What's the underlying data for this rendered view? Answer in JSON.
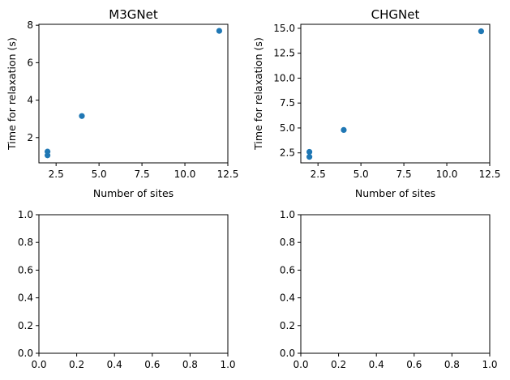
{
  "chart_data": [
    {
      "type": "scatter",
      "title": "M3GNet",
      "xlabel": "Number of sites",
      "ylabel": "Time for relaxation (s)",
      "xlim": [
        1.5,
        12.5
      ],
      "ylim": [
        0.65,
        8.05
      ],
      "xticks": [
        "2.5",
        "5.0",
        "7.5",
        "10.0",
        "12.5"
      ],
      "yticks": [
        "2",
        "4",
        "6",
        "8"
      ],
      "grid": false,
      "color": "#1f77b4",
      "points": [
        {
          "x": 2,
          "y": 1.05
        },
        {
          "x": 2,
          "y": 1.25
        },
        {
          "x": 4,
          "y": 3.15
        },
        {
          "x": 12,
          "y": 7.7
        }
      ]
    },
    {
      "type": "scatter",
      "title": "CHGNet",
      "xlabel": "Number of sites",
      "ylabel": "Time for relaxation (s)",
      "xlim": [
        1.5,
        12.5
      ],
      "ylim": [
        1.5,
        15.4
      ],
      "xticks": [
        "2.5",
        "5.0",
        "7.5",
        "10.0",
        "12.5"
      ],
      "yticks": [
        "2.5",
        "5.0",
        "7.5",
        "10.0",
        "12.5",
        "15.0"
      ],
      "grid": false,
      "color": "#1f77b4",
      "points": [
        {
          "x": 2,
          "y": 2.1
        },
        {
          "x": 2,
          "y": 2.6
        },
        {
          "x": 4,
          "y": 4.8
        },
        {
          "x": 12,
          "y": 14.7
        }
      ]
    },
    {
      "type": "scatter",
      "title": "",
      "xlabel": "",
      "ylabel": "",
      "xlim": [
        0,
        1
      ],
      "ylim": [
        0,
        1
      ],
      "xticks": [
        "0.0",
        "0.2",
        "0.4",
        "0.6",
        "0.8",
        "1.0"
      ],
      "yticks": [
        "0.0",
        "0.2",
        "0.4",
        "0.6",
        "0.8",
        "1.0"
      ],
      "grid": false,
      "color": "#1f77b4",
      "points": []
    },
    {
      "type": "scatter",
      "title": "",
      "xlabel": "",
      "ylabel": "",
      "xlim": [
        0,
        1
      ],
      "ylim": [
        0,
        1
      ],
      "xticks": [
        "0.0",
        "0.2",
        "0.4",
        "0.6",
        "0.8",
        "1.0"
      ],
      "yticks": [
        "0.0",
        "0.2",
        "0.4",
        "0.6",
        "0.8",
        "1.0"
      ],
      "grid": false,
      "color": "#1f77b4",
      "points": []
    }
  ]
}
